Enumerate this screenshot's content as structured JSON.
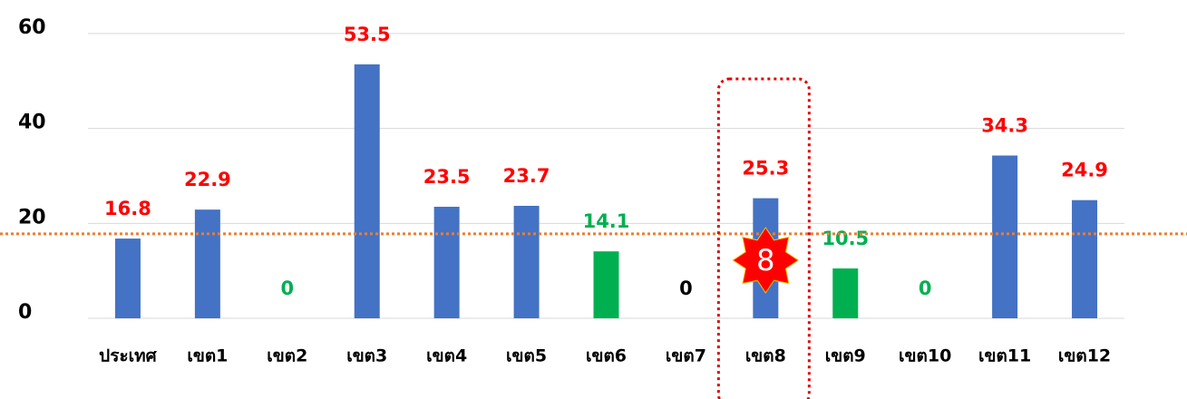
{
  "chart_data": {
    "type": "bar",
    "categories": [
      "ประเทศ",
      "เขต1",
      "เขต2",
      "เขต3",
      "เขต4",
      "เขต5",
      "เขต6",
      "เขต7",
      "เขต8",
      "เขต9",
      "เขต10",
      "เขต11",
      "เขต12"
    ],
    "values": [
      16.8,
      22.9,
      0,
      53.5,
      23.5,
      23.7,
      14.1,
      0,
      25.3,
      10.5,
      0,
      34.3,
      24.9
    ],
    "colors": [
      "#4472c4",
      "#4472c4",
      "#4472c4",
      "#4472c4",
      "#4472c4",
      "#4472c4",
      "#00b050",
      "#4472c4",
      "#4472c4",
      "#00b050",
      "#4472c4",
      "#4472c4",
      "#4472c4"
    ],
    "label_colors": [
      "#ff0000",
      "#ff0000",
      "#00b050",
      "#ff0000",
      "#ff0000",
      "#ff0000",
      "#00b050",
      "#000000",
      "#ff0000",
      "#00b050",
      "#00b050",
      "#ff0000",
      "#ff0000"
    ],
    "reference_line": 17.8,
    "reference_color": "#ed7d31",
    "highlight_category": "เขต8",
    "highlight_label": "8",
    "ylim": [
      0,
      60
    ],
    "yticks": [
      0,
      20,
      40,
      60
    ],
    "grid": true
  }
}
